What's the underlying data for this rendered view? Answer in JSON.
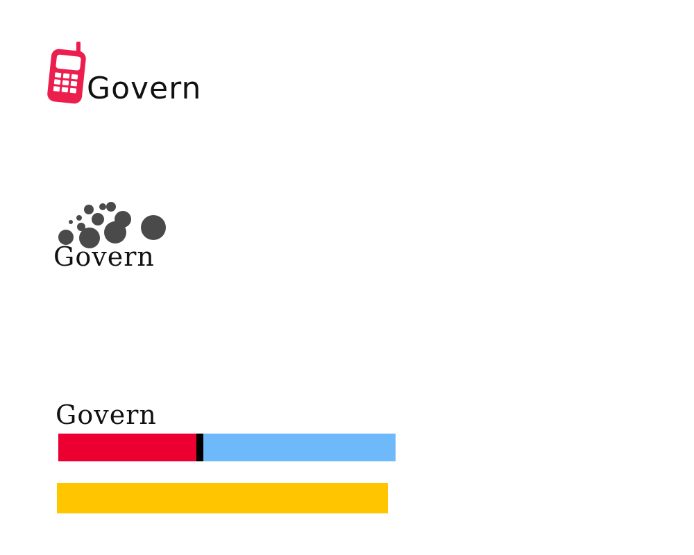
{
  "logos": [
    {
      "wordmark": "Govern",
      "icon": "mobile-phone-icon",
      "icon_color": "#ec1e4e"
    },
    {
      "wordmark": "Govern",
      "icon": "bubbles-icon",
      "icon_color": "#4a4a4a"
    },
    {
      "wordmark": "Govern",
      "bars": [
        {
          "name": "red",
          "color": "#ec0032"
        },
        {
          "name": "divider",
          "color": "#000000"
        },
        {
          "name": "blue",
          "color": "#6eb9f9"
        },
        {
          "name": "yellow",
          "color": "#ffc600"
        }
      ]
    }
  ]
}
